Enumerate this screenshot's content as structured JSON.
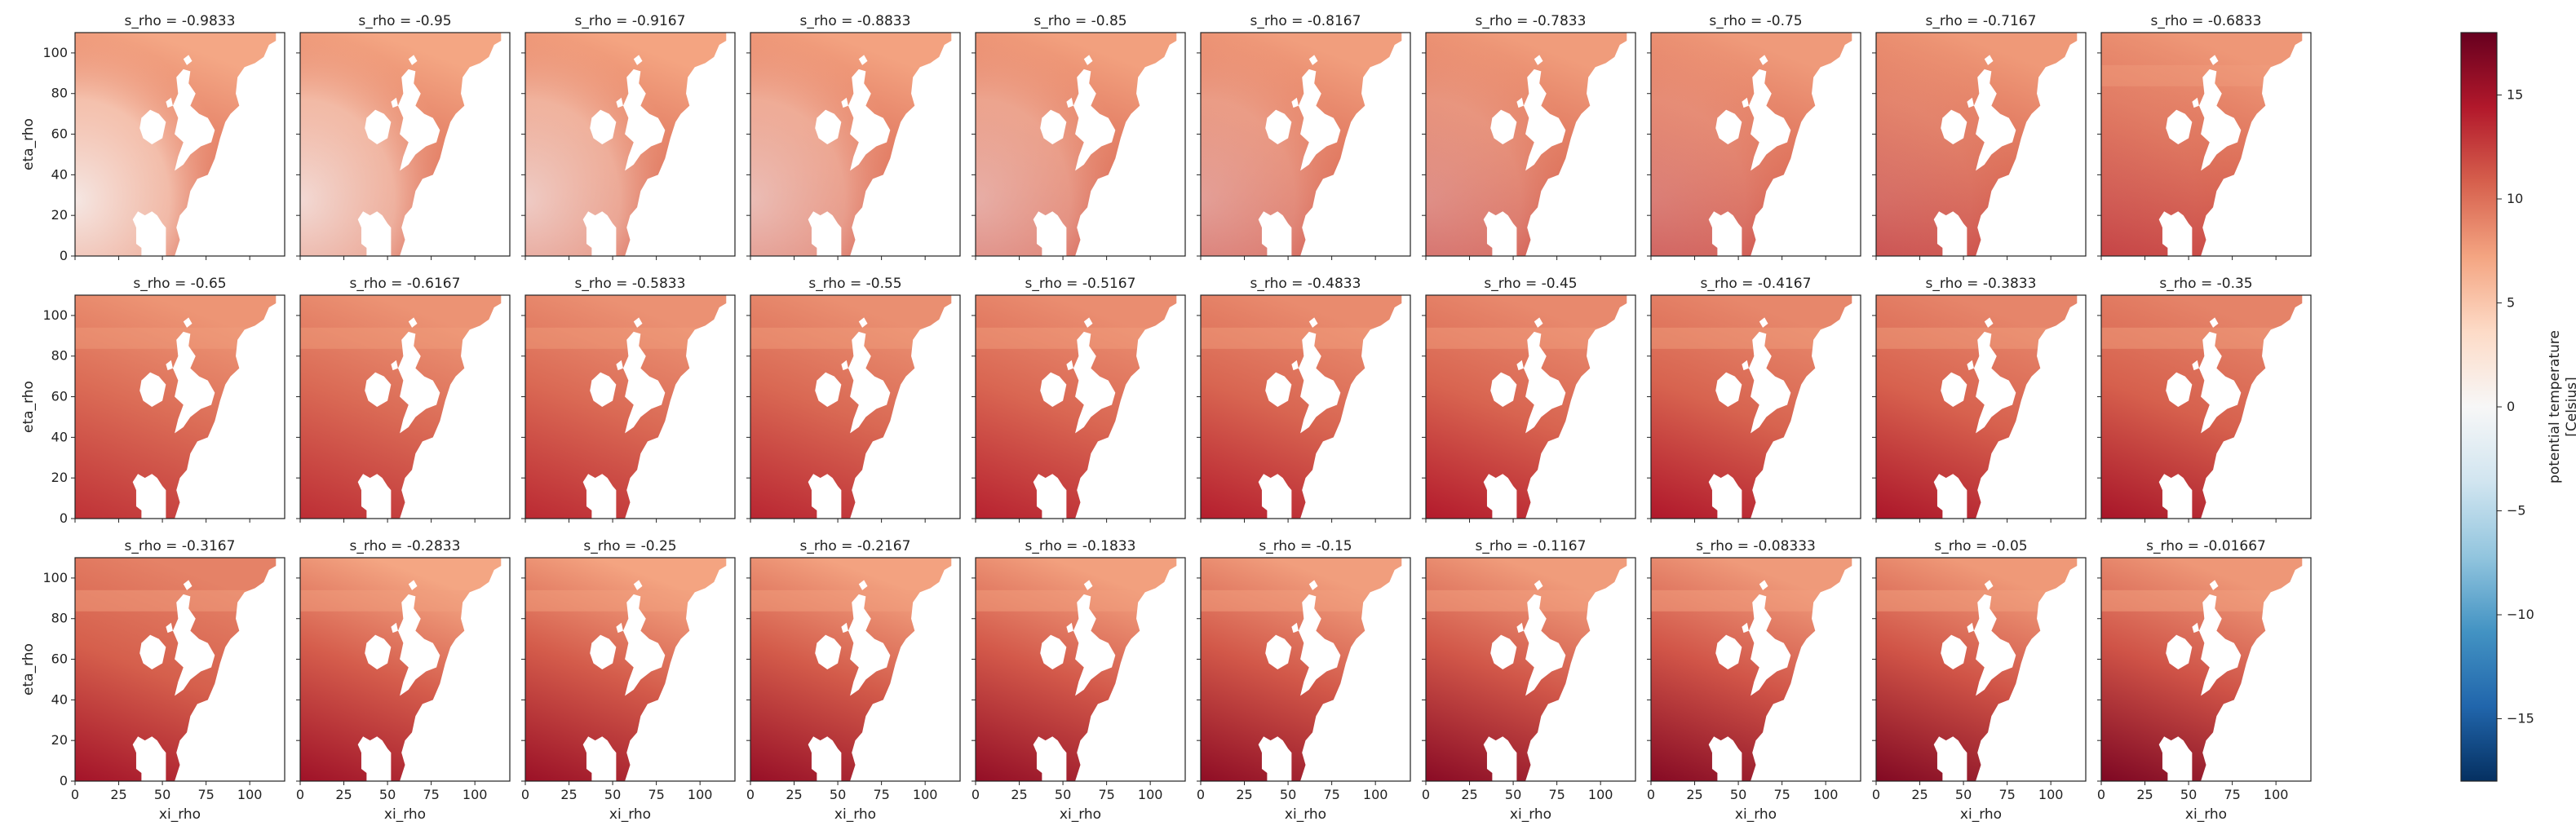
{
  "chart_data": {
    "type": "heatmap",
    "layout": {
      "rows": 3,
      "cols": 10
    },
    "panel_titles": [
      "s_rho = -0.9833",
      "s_rho = -0.95",
      "s_rho = -0.9167",
      "s_rho = -0.8833",
      "s_rho = -0.85",
      "s_rho = -0.8167",
      "s_rho = -0.7833",
      "s_rho = -0.75",
      "s_rho = -0.7167",
      "s_rho = -0.6833",
      "s_rho = -0.65",
      "s_rho = -0.6167",
      "s_rho = -0.5833",
      "s_rho = -0.55",
      "s_rho = -0.5167",
      "s_rho = -0.4833",
      "s_rho = -0.45",
      "s_rho = -0.4167",
      "s_rho = -0.3833",
      "s_rho = -0.35",
      "s_rho = -0.3167",
      "s_rho = -0.2833",
      "s_rho = -0.25",
      "s_rho = -0.2167",
      "s_rho = -0.1833",
      "s_rho = -0.15",
      "s_rho = -0.1167",
      "s_rho = -0.08333",
      "s_rho = -0.05",
      "s_rho = -0.01667"
    ],
    "s_rho": [
      -0.9833,
      -0.95,
      -0.9167,
      -0.8833,
      -0.85,
      -0.8167,
      -0.7833,
      -0.75,
      -0.7167,
      -0.6833,
      -0.65,
      -0.6167,
      -0.5833,
      -0.55,
      -0.5167,
      -0.4833,
      -0.45,
      -0.4167,
      -0.3833,
      -0.35,
      -0.3167,
      -0.2833,
      -0.25,
      -0.2167,
      -0.1833,
      -0.15,
      -0.1167,
      -0.08333,
      -0.05,
      -0.01667
    ],
    "xlabel": "xi_rho",
    "ylabel": "eta_rho",
    "xlim": [
      0,
      120
    ],
    "ylim": [
      0,
      110
    ],
    "xticks": [
      0,
      25,
      50,
      75,
      100
    ],
    "yticks": [
      0,
      20,
      40,
      60,
      80,
      100
    ],
    "colorbar": {
      "label_line1": "potential temperature",
      "label_line2": "[Celsius]",
      "vmin": -18,
      "vmax": 18,
      "ticks": [
        -15,
        -10,
        -5,
        0,
        5,
        10,
        15
      ],
      "tick_labels": [
        "−15",
        "−10",
        "−5",
        "0",
        "5",
        "10",
        "15"
      ],
      "colormap": "RdBu_r",
      "stops": [
        "#053061",
        "#2166ac",
        "#4393c3",
        "#92c5de",
        "#d1e5f0",
        "#f7f7f7",
        "#fddbc7",
        "#f4a582",
        "#d6604d",
        "#b2182b",
        "#67001f"
      ]
    },
    "grid": false,
    "land_color": "#ffffff"
  }
}
